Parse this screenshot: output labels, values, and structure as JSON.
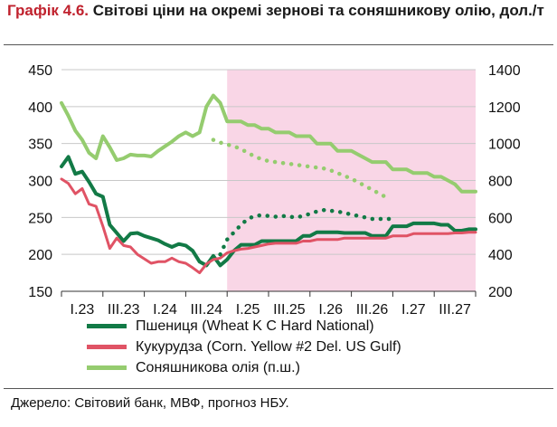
{
  "title": {
    "label": "Графік 4.6.",
    "text": "Світові ціни на окремі зернові та соняшникову олію, дол./т"
  },
  "source": "Джерело: Світовий банк, МВФ, прогноз НБУ.",
  "chart_data": {
    "type": "line",
    "x_tick_labels": [
      "I.23",
      "III.23",
      "I.24",
      "III.24",
      "I.25",
      "III.25",
      "I.26",
      "III.26",
      "I.27",
      "III.27"
    ],
    "x_domain": [
      0,
      60
    ],
    "forecast_start_quarter": "I.25",
    "forecast_shading_color": "#f9d6e6",
    "y_left": {
      "ylim": [
        150,
        450
      ],
      "ticks": [
        150,
        200,
        250,
        300,
        350,
        400,
        450
      ]
    },
    "y_right": {
      "ylim": [
        200,
        1400
      ],
      "ticks": [
        200,
        400,
        600,
        800,
        1000,
        1200,
        1400
      ]
    },
    "grid": true,
    "legend_position": "bottom",
    "series": [
      {
        "name": "Пшениця (Wheat K C Hard National)",
        "color": "#127a46",
        "width": 4,
        "axis": "left",
        "x": [
          0,
          1,
          2,
          3,
          4,
          5,
          6,
          7,
          8,
          9,
          10,
          11,
          12,
          13,
          14,
          15,
          16,
          17,
          18,
          19,
          20,
          21,
          22,
          23,
          24,
          25,
          26,
          27,
          28,
          29,
          30,
          31,
          32,
          33,
          34,
          35,
          36,
          37,
          38,
          39,
          40,
          41,
          42,
          43,
          44,
          45,
          46,
          47,
          48,
          49,
          50,
          51,
          52,
          53,
          54,
          55,
          56,
          57,
          58,
          59,
          60
        ],
        "values": [
          319,
          332,
          309,
          312,
          298,
          282,
          278,
          240,
          229,
          218,
          228,
          229,
          225,
          222,
          219,
          214,
          210,
          214,
          212,
          205,
          190,
          185,
          198,
          185,
          193,
          205,
          213,
          213,
          213,
          218,
          218,
          218,
          218,
          218,
          218,
          225,
          225,
          230,
          230,
          230,
          230,
          229,
          229,
          229,
          229,
          225,
          225,
          225,
          238,
          238,
          238,
          242,
          242,
          242,
          242,
          240,
          240,
          232,
          232,
          234,
          234
        ]
      },
      {
        "name": "Кукурудза (Corn. Yellow #2 Del. US Gulf)",
        "color": "#e05365",
        "width": 3,
        "axis": "left",
        "x": [
          0,
          1,
          2,
          3,
          4,
          5,
          6,
          7,
          8,
          9,
          10,
          11,
          12,
          13,
          14,
          15,
          16,
          17,
          18,
          19,
          20,
          21,
          22,
          23,
          24,
          25,
          26,
          27,
          28,
          29,
          30,
          31,
          32,
          33,
          34,
          35,
          36,
          37,
          38,
          39,
          40,
          41,
          42,
          43,
          44,
          45,
          46,
          47,
          48,
          49,
          50,
          51,
          52,
          53,
          54,
          55,
          56,
          57,
          58,
          59,
          60
        ],
        "values": [
          302,
          296,
          282,
          289,
          268,
          265,
          238,
          208,
          222,
          212,
          210,
          200,
          194,
          188,
          190,
          190,
          195,
          190,
          188,
          182,
          175,
          187,
          193,
          195,
          202,
          205,
          207,
          208,
          210,
          212,
          214,
          215,
          215,
          215,
          215,
          218,
          218,
          220,
          220,
          220,
          220,
          222,
          222,
          222,
          222,
          222,
          222,
          222,
          225,
          225,
          225,
          228,
          228,
          228,
          228,
          228,
          228,
          229,
          229,
          230,
          230
        ]
      },
      {
        "name": "Соняшникова олія (п.ш.)",
        "color": "#95cc6f",
        "width": 4,
        "axis": "right",
        "x": [
          0,
          1,
          2,
          3,
          4,
          5,
          6,
          7,
          8,
          9,
          10,
          11,
          12,
          13,
          14,
          15,
          16,
          17,
          18,
          19,
          20,
          21,
          22,
          23,
          24,
          25,
          26,
          27,
          28,
          29,
          30,
          31,
          32,
          33,
          34,
          35,
          36,
          37,
          38,
          39,
          40,
          41,
          42,
          43,
          44,
          45,
          46,
          47,
          48,
          49,
          50,
          51,
          52,
          53,
          54,
          55,
          56,
          57,
          58,
          59,
          60
        ],
        "values": [
          1220,
          1150,
          1070,
          1020,
          950,
          920,
          1040,
          980,
          910,
          920,
          940,
          935,
          935,
          930,
          960,
          985,
          1010,
          1040,
          1060,
          1040,
          1060,
          1200,
          1260,
          1220,
          1120,
          1120,
          1120,
          1100,
          1100,
          1080,
          1080,
          1060,
          1060,
          1060,
          1040,
          1040,
          1040,
          1000,
          1000,
          1000,
          960,
          960,
          960,
          940,
          920,
          900,
          900,
          900,
          860,
          860,
          860,
          840,
          840,
          840,
          820,
          820,
          800,
          780,
          740,
          740,
          740
        ]
      },
      {
        "name": "",
        "color": "#127a46",
        "width": 4,
        "axis": "left",
        "dotted": true,
        "x": [
          23,
          24,
          25,
          26,
          27,
          28,
          29,
          30,
          31,
          32,
          33,
          34,
          35,
          36,
          37,
          38,
          39,
          40,
          41,
          42,
          43,
          44,
          45,
          46,
          47,
          48
        ],
        "values": [
          200,
          220,
          230,
          240,
          248,
          252,
          253,
          252,
          251,
          252,
          251,
          250,
          252,
          255,
          258,
          260,
          259,
          258,
          256,
          254,
          252,
          250,
          248,
          248,
          248,
          248
        ]
      },
      {
        "name": "",
        "color": "#95cc6f",
        "width": 4,
        "axis": "right",
        "dotted": true,
        "x": [
          22,
          23,
          24,
          25,
          26,
          27,
          28,
          29,
          30,
          31,
          32,
          33,
          34,
          35,
          36,
          37,
          38,
          39,
          40,
          41,
          42,
          43,
          44,
          45,
          46,
          47
        ],
        "values": [
          1020,
          1005,
          995,
          985,
          970,
          950,
          930,
          915,
          905,
          900,
          895,
          890,
          885,
          880,
          875,
          870,
          865,
          855,
          840,
          825,
          810,
          790,
          770,
          750,
          730,
          710
        ]
      }
    ]
  }
}
